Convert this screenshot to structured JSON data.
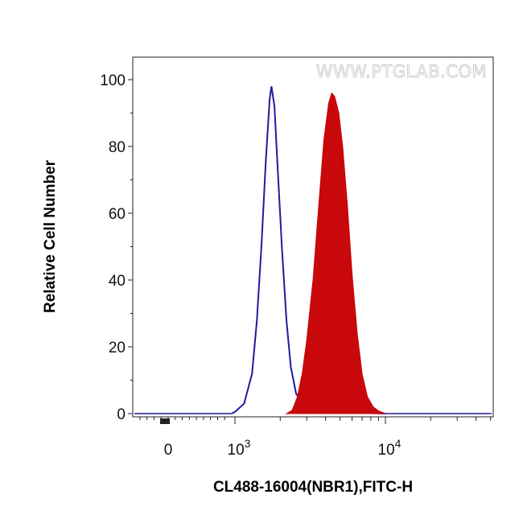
{
  "watermark": "WWW.PTGLAB.COM",
  "chart_data": {
    "type": "area",
    "xlabel": "CL488-16004(NBR1),FITC-H",
    "ylabel": "Relative Cell Number",
    "x_scale": "biexponential",
    "xlim": [
      -600,
      50000
    ],
    "ylim": [
      0,
      100
    ],
    "y_ticks": [
      0,
      20,
      40,
      60,
      80,
      100
    ],
    "x_ticks": [
      {
        "value": 0,
        "label": "0",
        "exp": ""
      },
      {
        "value": 1000,
        "label": "10",
        "exp": "3"
      },
      {
        "value": 10000,
        "label": "10",
        "exp": "4"
      }
    ],
    "grid": false,
    "series": [
      {
        "style": "outline",
        "color": "#1d1d9c",
        "points": [
          [
            900,
            0
          ],
          [
            1000,
            0.5
          ],
          [
            1150,
            3
          ],
          [
            1300,
            12
          ],
          [
            1400,
            28
          ],
          [
            1500,
            50
          ],
          [
            1600,
            75
          ],
          [
            1700,
            94
          ],
          [
            1750,
            98
          ],
          [
            1830,
            92
          ],
          [
            1920,
            74
          ],
          [
            2050,
            50
          ],
          [
            2200,
            28
          ],
          [
            2350,
            14
          ],
          [
            2550,
            6
          ],
          [
            2800,
            3
          ],
          [
            3200,
            1.5
          ],
          [
            4000,
            0.8
          ],
          [
            5000,
            0.5
          ],
          [
            7000,
            0.2
          ],
          [
            10000,
            0
          ]
        ]
      },
      {
        "style": "filled",
        "color": "#c8080b",
        "points": [
          [
            2200,
            0
          ],
          [
            2400,
            1
          ],
          [
            2600,
            5
          ],
          [
            2800,
            12
          ],
          [
            3000,
            22
          ],
          [
            3300,
            40
          ],
          [
            3600,
            62
          ],
          [
            3900,
            82
          ],
          [
            4200,
            93
          ],
          [
            4400,
            96
          ],
          [
            4600,
            95
          ],
          [
            4900,
            90
          ],
          [
            5200,
            80
          ],
          [
            5600,
            62
          ],
          [
            6000,
            42
          ],
          [
            6500,
            24
          ],
          [
            7000,
            12
          ],
          [
            7600,
            5
          ],
          [
            8300,
            2
          ],
          [
            9000,
            0.8
          ],
          [
            10000,
            0
          ]
        ]
      }
    ]
  }
}
